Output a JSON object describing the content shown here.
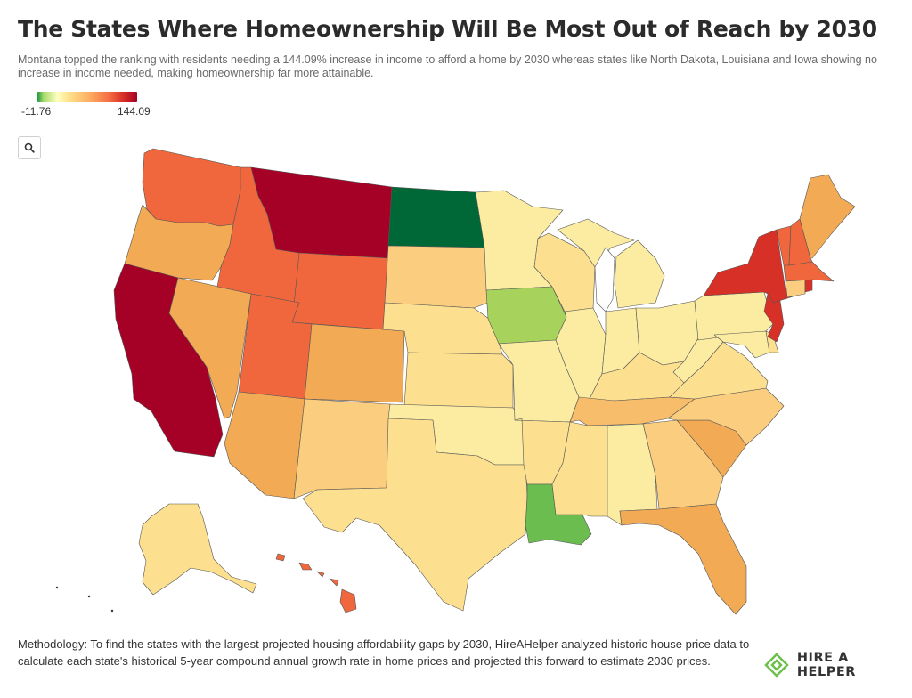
{
  "header": {
    "title": "The States Where Homeownership Will Be Most Out of Reach by 2030",
    "subtitle": "Montana topped the ranking with residents needing a 144.09% increase in income to afford a home by 2030 whereas states like North Dakota, Louisiana and Iowa showing no increase in income needed, making homeownership far more attainable."
  },
  "legend": {
    "min_label": "-11.76",
    "max_label": "144.09",
    "colors": [
      "#1a9641",
      "#a6d96a",
      "#ffffbf",
      "#fee08b",
      "#fdae61",
      "#f46d43",
      "#d73027",
      "#a50026"
    ]
  },
  "controls": {
    "search_icon": "magnifier-icon"
  },
  "colors": {
    "darkred": "#a50026",
    "red": "#d73027",
    "orange_red": "#f0673d",
    "orange_light": "#f3aa54",
    "light_orange": "#f8bd6a",
    "tan": "#fbcd7e",
    "light_tan": "#fde08f",
    "pale": "#fbeca2",
    "light_green": "#a7d35c",
    "green": "#6bbd4f",
    "dark_green": "#006837",
    "border": "#555555"
  },
  "footer": {
    "methodology": "Methodology: To find the states with the largest projected housing affordability gaps by 2030, HireAHelper analyzed historic house price data to calculate each state's historical 5-year compound annual growth rate in home prices and projected this forward to estimate 2030 prices.",
    "brand": "HIRE A HELPER",
    "brand_icon": "hire-a-helper-logo-icon"
  }
}
